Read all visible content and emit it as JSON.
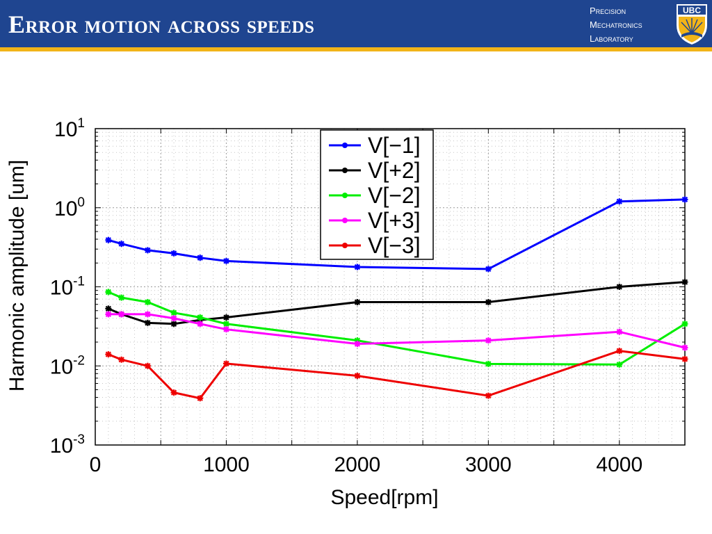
{
  "header": {
    "title": "Error motion across speeds",
    "lab_lines": [
      "Precision",
      "Mechatronics",
      "Laboratory"
    ],
    "logo_text": "UBC",
    "colors": {
      "banner": "#1f4590",
      "accent": "#f2b418"
    }
  },
  "chart_data": {
    "type": "line",
    "xlabel": "Speed[rpm]",
    "ylabel": "Harmonic amplitude [um]",
    "xlim": [
      0,
      4500
    ],
    "ylim": [
      0.001,
      10
    ],
    "yscale": "log",
    "grid": true,
    "legend_position": "top-center",
    "xticks": [
      0,
      1000,
      2000,
      3000,
      4000
    ],
    "xtick_labels": [
      "0",
      "1000",
      "2000",
      "3000",
      "4000"
    ],
    "yticks": [
      0.001,
      0.01,
      0.1,
      1,
      10
    ],
    "ytick_labels": [
      {
        "base": "10",
        "exp": "-3"
      },
      {
        "base": "10",
        "exp": "-2"
      },
      {
        "base": "10",
        "exp": "-1"
      },
      {
        "base": "10",
        "exp": "0"
      },
      {
        "base": "10",
        "exp": "1"
      }
    ],
    "x": [
      100,
      200,
      400,
      600,
      800,
      1000,
      2000,
      3000,
      4000,
      4500
    ],
    "series": [
      {
        "name": "V[−1]",
        "color": "#0000ff",
        "values": [
          0.39,
          0.35,
          0.29,
          0.265,
          0.233,
          0.212,
          0.178,
          0.168,
          1.2,
          1.27
        ]
      },
      {
        "name": "V[+2]",
        "color": "#000000",
        "values": [
          0.053,
          0.045,
          0.035,
          0.034,
          0.038,
          0.041,
          0.064,
          0.064,
          0.1,
          0.115
        ]
      },
      {
        "name": "V[−2]",
        "color": "#00ee00",
        "values": [
          0.086,
          0.073,
          0.064,
          0.047,
          0.041,
          0.034,
          0.021,
          0.0106,
          0.0104,
          0.034
        ]
      },
      {
        "name": "V[+3]",
        "color": "#ff00ff",
        "values": [
          0.045,
          0.045,
          0.045,
          0.04,
          0.034,
          0.029,
          0.019,
          0.021,
          0.027,
          0.017
        ]
      },
      {
        "name": "V[−3]",
        "color": "#ee0000",
        "values": [
          0.014,
          0.012,
          0.01,
          0.0046,
          0.0039,
          0.0107,
          0.0075,
          0.0042,
          0.0155,
          0.0122
        ]
      }
    ]
  }
}
